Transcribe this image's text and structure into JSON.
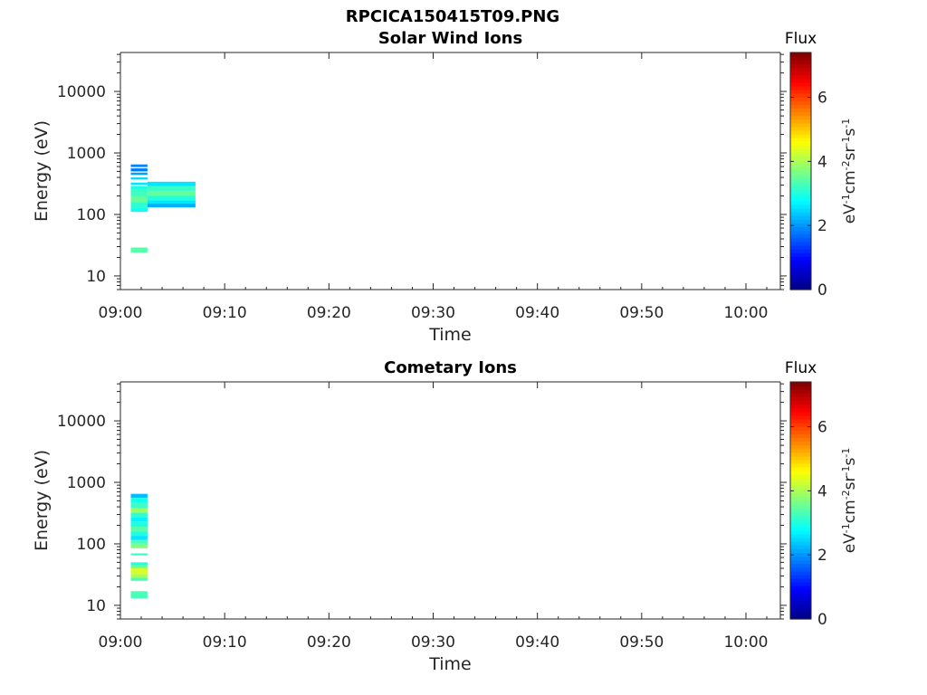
{
  "figure_title": "RPCICA150415T09.PNG",
  "colorbar": {
    "title": "Flux",
    "label_parts": [
      "eV",
      "-1",
      "cm",
      "-2",
      "sr",
      "-1",
      "s",
      "-1"
    ],
    "ticks": [
      "0",
      "2",
      "4",
      "6"
    ],
    "range": [
      0,
      7.4
    ],
    "colormap": "jet"
  },
  "chart_data": [
    {
      "type": "heatmap",
      "title": "Solar Wind Ions",
      "xlabel": "Time",
      "ylabel": "Energy (eV)",
      "x_ticks": [
        "09:00",
        "09:10",
        "09:20",
        "09:30",
        "09:40",
        "09:50",
        "10:00"
      ],
      "y_ticks": [
        "10",
        "100",
        "1000",
        "10000"
      ],
      "y_scale": "log",
      "ylim": [
        6,
        43000
      ],
      "xlim_minutes": [
        0,
        63.3
      ],
      "cells": [
        {
          "t0": 1.0,
          "t1": 2.6,
          "e_lo": 590,
          "e_hi": 650,
          "flux": 1.9
        },
        {
          "t0": 1.0,
          "t1": 2.6,
          "e_lo": 500,
          "e_hi": 560,
          "flux": 1.8
        },
        {
          "t0": 1.0,
          "t1": 2.6,
          "e_lo": 440,
          "e_hi": 480,
          "flux": 2.1
        },
        {
          "t0": 1.0,
          "t1": 2.6,
          "e_lo": 370,
          "e_hi": 400,
          "flux": 2.5
        },
        {
          "t0": 1.0,
          "t1": 2.6,
          "e_lo": 300,
          "e_hi": 330,
          "flux": 2.6
        },
        {
          "t0": 1.0,
          "t1": 2.6,
          "e_lo": 250,
          "e_hi": 290,
          "flux": 3.0
        },
        {
          "t0": 1.0,
          "t1": 2.6,
          "e_lo": 200,
          "e_hi": 250,
          "flux": 3.2
        },
        {
          "t0": 1.0,
          "t1": 2.6,
          "e_lo": 160,
          "e_hi": 200,
          "flux": 3.5
        },
        {
          "t0": 1.0,
          "t1": 2.6,
          "e_lo": 130,
          "e_hi": 160,
          "flux": 3.1
        },
        {
          "t0": 1.0,
          "t1": 2.6,
          "e_lo": 110,
          "e_hi": 130,
          "flux": 2.9
        },
        {
          "t0": 1.0,
          "t1": 2.6,
          "e_lo": 24,
          "e_hi": 29,
          "flux": 3.4
        },
        {
          "t0": 2.6,
          "t1": 7.2,
          "e_lo": 290,
          "e_hi": 340,
          "flux": 2.6
        },
        {
          "t0": 2.6,
          "t1": 7.2,
          "e_lo": 240,
          "e_hi": 290,
          "flux": 3.2
        },
        {
          "t0": 2.6,
          "t1": 7.2,
          "e_lo": 200,
          "e_hi": 240,
          "flux": 3.5
        },
        {
          "t0": 2.6,
          "t1": 7.2,
          "e_lo": 170,
          "e_hi": 200,
          "flux": 3.0
        },
        {
          "t0": 2.6,
          "t1": 7.2,
          "e_lo": 150,
          "e_hi": 170,
          "flux": 2.6
        },
        {
          "t0": 2.6,
          "t1": 7.2,
          "e_lo": 130,
          "e_hi": 150,
          "flux": 2.2
        }
      ]
    },
    {
      "type": "heatmap",
      "title": "Cometary Ions",
      "xlabel": "Time",
      "ylabel": "Energy (eV)",
      "x_ticks": [
        "09:00",
        "09:10",
        "09:20",
        "09:30",
        "09:40",
        "09:50",
        "10:00"
      ],
      "y_ticks": [
        "10",
        "100",
        "1000",
        "10000"
      ],
      "y_scale": "log",
      "ylim": [
        6,
        43000
      ],
      "xlim_minutes": [
        0,
        63.3
      ],
      "cells": [
        {
          "t0": 1.0,
          "t1": 2.6,
          "e_lo": 560,
          "e_hi": 650,
          "flux": 2.3
        },
        {
          "t0": 1.0,
          "t1": 2.6,
          "e_lo": 460,
          "e_hi": 560,
          "flux": 2.9
        },
        {
          "t0": 1.0,
          "t1": 2.6,
          "e_lo": 380,
          "e_hi": 460,
          "flux": 3.2
        },
        {
          "t0": 1.0,
          "t1": 2.6,
          "e_lo": 320,
          "e_hi": 380,
          "flux": 3.9
        },
        {
          "t0": 1.0,
          "t1": 2.6,
          "e_lo": 270,
          "e_hi": 320,
          "flux": 3.1
        },
        {
          "t0": 1.0,
          "t1": 2.6,
          "e_lo": 230,
          "e_hi": 270,
          "flux": 2.7
        },
        {
          "t0": 1.0,
          "t1": 2.6,
          "e_lo": 190,
          "e_hi": 230,
          "flux": 3.0
        },
        {
          "t0": 1.0,
          "t1": 2.6,
          "e_lo": 160,
          "e_hi": 190,
          "flux": 3.4
        },
        {
          "t0": 1.0,
          "t1": 2.6,
          "e_lo": 135,
          "e_hi": 160,
          "flux": 3.0
        },
        {
          "t0": 1.0,
          "t1": 2.6,
          "e_lo": 115,
          "e_hi": 135,
          "flux": 2.6
        },
        {
          "t0": 1.0,
          "t1": 2.6,
          "e_lo": 100,
          "e_hi": 115,
          "flux": 3.3
        },
        {
          "t0": 1.0,
          "t1": 2.6,
          "e_lo": 85,
          "e_hi": 100,
          "flux": 3.7
        },
        {
          "t0": 1.0,
          "t1": 2.6,
          "e_lo": 65,
          "e_hi": 70,
          "flux": 3.2
        },
        {
          "t0": 1.0,
          "t1": 2.6,
          "e_lo": 45,
          "e_hi": 50,
          "flux": 3.0
        },
        {
          "t0": 1.0,
          "t1": 2.6,
          "e_lo": 40,
          "e_hi": 45,
          "flux": 3.6
        },
        {
          "t0": 1.0,
          "t1": 2.6,
          "e_lo": 32,
          "e_hi": 40,
          "flux": 4.3
        },
        {
          "t0": 1.0,
          "t1": 2.6,
          "e_lo": 28,
          "e_hi": 32,
          "flux": 4.0
        },
        {
          "t0": 1.0,
          "t1": 2.6,
          "e_lo": 25,
          "e_hi": 28,
          "flux": 3.3
        },
        {
          "t0": 1.0,
          "t1": 2.6,
          "e_lo": 13,
          "e_hi": 17,
          "flux": 3.3
        }
      ]
    }
  ]
}
